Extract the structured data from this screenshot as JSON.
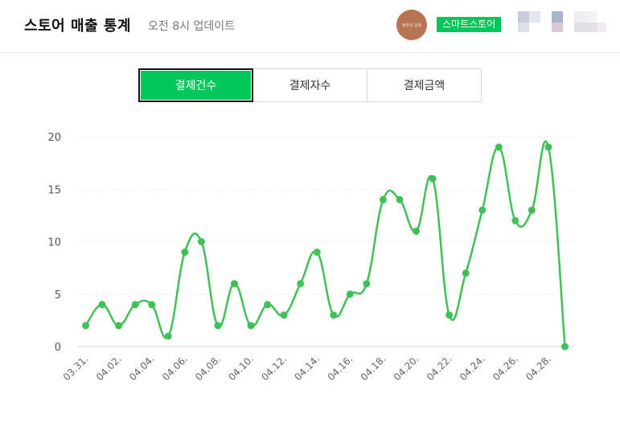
{
  "header": {
    "title": "스토어 매출 통계",
    "subtitle": "오전 8시 업데이트",
    "avatar_text": "호두네 상회",
    "store_badge": "스마트스토어"
  },
  "tabs": [
    {
      "label": "결제건수",
      "active": true
    },
    {
      "label": "결제자수",
      "active": false
    },
    {
      "label": "결제금액",
      "active": false
    }
  ],
  "colors": {
    "line": "#40c057",
    "accent": "#03c75a",
    "grid": "#dddddd",
    "axis": "#c6d2e6"
  },
  "chart_data": {
    "type": "line",
    "x": [
      "03.31.",
      "04.01.",
      "04.02.",
      "04.03.",
      "04.04.",
      "04.05.",
      "04.06.",
      "04.07.",
      "04.08.",
      "04.09.",
      "04.10.",
      "04.11.",
      "04.12.",
      "04.13.",
      "04.14.",
      "04.15.",
      "04.16.",
      "04.17.",
      "04.18.",
      "04.19.",
      "04.20.",
      "04.21.",
      "04.22.",
      "04.23.",
      "04.24.",
      "04.25.",
      "04.26.",
      "04.27.",
      "04.28.",
      "04.29."
    ],
    "tick_labels": [
      "03.31.",
      "04.02.",
      "04.04.",
      "04.06.",
      "04.08.",
      "04.10.",
      "04.12.",
      "04.14.",
      "04.16.",
      "04.18.",
      "04.20.",
      "04.22.",
      "04.24.",
      "04.26.",
      "04.28."
    ],
    "series": [
      {
        "values": [
          2,
          4,
          2,
          4,
          4,
          1,
          9,
          10,
          2,
          6,
          2,
          4,
          3,
          6,
          9,
          3,
          5,
          6,
          14,
          14,
          11,
          16,
          3,
          7,
          13,
          19,
          12,
          13,
          19,
          0
        ]
      }
    ],
    "yticks": [
      0,
      5,
      10,
      15,
      20
    ],
    "ylim": [
      0,
      20
    ],
    "grid": "horizontal-dotted",
    "title": "",
    "xlabel": "",
    "ylabel": ""
  }
}
